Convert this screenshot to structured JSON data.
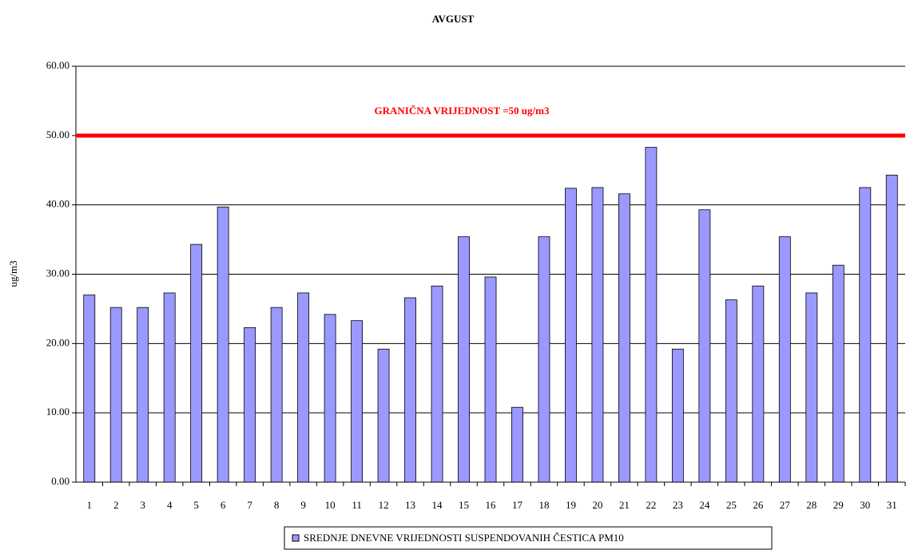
{
  "chart_data": {
    "type": "bar",
    "title": "AVGUST",
    "ylabel": "ug/m3",
    "categories": [
      "1",
      "2",
      "3",
      "4",
      "5",
      "6",
      "7",
      "8",
      "9",
      "10",
      "11",
      "12",
      "13",
      "14",
      "15",
      "16",
      "17",
      "18",
      "19",
      "20",
      "21",
      "22",
      "23",
      "24",
      "25",
      "26",
      "27",
      "28",
      "29",
      "30",
      "31"
    ],
    "series": [
      {
        "name": "SREDNJE DNEVNE VRIJEDNOSTI SUSPENDOVANIH ČESTICA PM10",
        "color": "#9999ff",
        "values": [
          27.0,
          25.2,
          25.2,
          27.3,
          34.3,
          39.7,
          22.3,
          25.2,
          27.3,
          24.2,
          23.3,
          19.2,
          26.6,
          28.3,
          35.4,
          29.6,
          10.8,
          35.4,
          42.4,
          42.5,
          41.6,
          48.3,
          19.2,
          39.3,
          26.3,
          28.3,
          35.4,
          27.3,
          31.3,
          42.5,
          44.3
        ]
      }
    ],
    "threshold": 50,
    "threshold_color": "#ff0000",
    "annotation": "GRANIČNA VRIJEDNOST =50 ug/m3",
    "ylim": [
      0,
      60
    ],
    "yticks": [
      {
        "value": 0,
        "label": "0.00"
      },
      {
        "value": 10,
        "label": "10.00"
      },
      {
        "value": 20,
        "label": "20.00"
      },
      {
        "value": 30,
        "label": "30.00"
      },
      {
        "value": 40,
        "label": "40.00"
      },
      {
        "value": 50,
        "label": "50.00"
      },
      {
        "value": 60,
        "label": "60.00"
      }
    ],
    "grid": true,
    "legend": "bottom"
  }
}
